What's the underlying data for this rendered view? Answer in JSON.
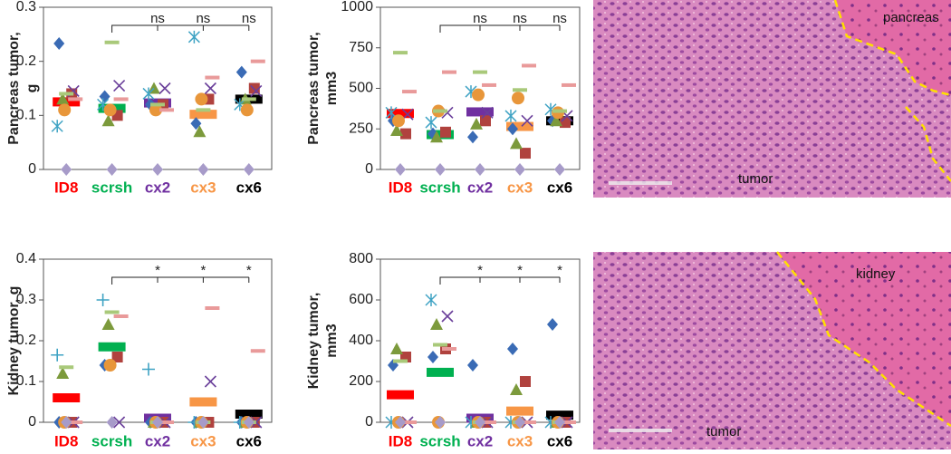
{
  "chart_data": [
    {
      "type": "dotplot",
      "ylabel": [
        "Pancreas tumor,",
        "g"
      ],
      "categories": [
        "ID8",
        "scrsh",
        "cx2",
        "cx3",
        "cx6"
      ],
      "colors": [
        "#ff0000",
        "#00b050",
        "#7030a0",
        "#f79646",
        "#000000"
      ],
      "values": [
        0.125,
        0.113,
        0.123,
        0.102,
        0.13
      ],
      "ylim": [
        0,
        0.3
      ],
      "yticks": [
        0,
        0.1,
        0.2,
        0.3
      ],
      "significance": [
        null,
        null,
        "ns",
        "ns",
        "ns"
      ],
      "series": [
        {
          "marker": "diamond",
          "color": "#3a6bb5",
          "values": [
            0.233,
            0.135,
            0.12,
            0.085,
            0.18
          ]
        },
        {
          "marker": "square",
          "color": "#b0423e",
          "values": [
            0.14,
            0.1,
            0.12,
            0.13,
            0.15
          ]
        },
        {
          "marker": "triangle",
          "color": "#7c9a3c",
          "values": [
            0.13,
            0.09,
            0.15,
            0.07,
            0.13
          ]
        },
        {
          "marker": "x",
          "color": "#6a3f9a",
          "values": [
            0.145,
            0.155,
            0.15,
            0.15,
            0.145
          ]
        },
        {
          "marker": "asterisk",
          "color": "#3fa3c4",
          "values": [
            0.08,
            0.12,
            0.14,
            0.245,
            0.12
          ]
        },
        {
          "marker": "circle",
          "color": "#e8963a",
          "values": [
            0.11,
            0.11,
            0.11,
            0.13,
            0.11
          ]
        },
        {
          "marker": "dash",
          "color": "#a9c97a",
          "values": [
            0.14,
            0.235,
            0.12,
            0.11,
            0.13
          ]
        },
        {
          "marker": "dash",
          "color": "#e99a9a",
          "values": [
            0.13,
            0.13,
            0.11,
            0.17,
            0.2
          ]
        },
        {
          "marker": "diamond",
          "color": "#a79bc9",
          "values": [
            0,
            0,
            0,
            0,
            0
          ]
        }
      ]
    },
    {
      "type": "dotplot",
      "ylabel": [
        "Pancreas tumor,",
        "mm3"
      ],
      "categories": [
        "ID8",
        "scrsh",
        "cx2",
        "cx3",
        "cx6"
      ],
      "colors": [
        "#ff0000",
        "#00b050",
        "#7030a0",
        "#f79646",
        "#000000"
      ],
      "values": [
        345,
        215,
        355,
        265,
        300
      ],
      "ylim": [
        0,
        1000
      ],
      "yticks": [
        0,
        250,
        500,
        750,
        1000
      ],
      "significance": [
        null,
        null,
        "ns",
        "ns",
        "ns"
      ],
      "series": [
        {
          "marker": "diamond",
          "color": "#3a6bb5",
          "values": [
            300,
            220,
            200,
            250,
            300
          ]
        },
        {
          "marker": "square",
          "color": "#b0423e",
          "values": [
            220,
            230,
            300,
            100,
            290
          ]
        },
        {
          "marker": "triangle",
          "color": "#7c9a3c",
          "values": [
            240,
            200,
            280,
            160,
            300
          ]
        },
        {
          "marker": "x",
          "color": "#6a3f9a",
          "values": [
            340,
            350,
            350,
            300,
            330
          ]
        },
        {
          "marker": "asterisk",
          "color": "#3fa3c4",
          "values": [
            350,
            290,
            480,
            330,
            370
          ]
        },
        {
          "marker": "circle",
          "color": "#e8963a",
          "values": [
            300,
            360,
            460,
            440,
            350
          ]
        },
        {
          "marker": "dash",
          "color": "#a9c97a",
          "values": [
            720,
            360,
            600,
            490,
            360
          ]
        },
        {
          "marker": "dash",
          "color": "#e99a9a",
          "values": [
            480,
            600,
            520,
            640,
            520
          ]
        },
        {
          "marker": "diamond",
          "color": "#a79bc9",
          "values": [
            0,
            0,
            0,
            0,
            0
          ]
        }
      ]
    },
    {
      "type": "dotplot",
      "ylabel": [
        "Kidney tumor, g"
      ],
      "categories": [
        "ID8",
        "scrsh",
        "cx2",
        "cx3",
        "cx6"
      ],
      "colors": [
        "#ff0000",
        "#00b050",
        "#7030a0",
        "#f79646",
        "#000000"
      ],
      "values": [
        0.06,
        0.185,
        0.01,
        0.05,
        0.02
      ],
      "ylim": [
        0,
        0.4
      ],
      "yticks": [
        0,
        0.1,
        0.2,
        0.3,
        0.4
      ],
      "significance": [
        null,
        null,
        "*",
        "*",
        "*"
      ],
      "series": [
        {
          "marker": "diamond",
          "color": "#3a6bb5",
          "values": [
            0,
            0.14,
            0,
            0,
            0
          ]
        },
        {
          "marker": "square",
          "color": "#b0423e",
          "values": [
            0,
            0.16,
            0,
            0,
            0
          ]
        },
        {
          "marker": "triangle",
          "color": "#7c9a3c",
          "values": [
            0.12,
            0.24,
            0,
            0,
            0
          ]
        },
        {
          "marker": "x",
          "color": "#6a3f9a",
          "values": [
            0,
            0,
            0,
            0.1,
            0
          ]
        },
        {
          "marker": "plus",
          "color": "#3fa3c4",
          "values": [
            0.165,
            0.3,
            0.13,
            0,
            0
          ]
        },
        {
          "marker": "circle",
          "color": "#e8963a",
          "values": [
            0,
            0.14,
            0,
            0,
            0
          ]
        },
        {
          "marker": "dash",
          "color": "#a9c97a",
          "values": [
            0.135,
            0.27,
            0,
            0,
            0
          ]
        },
        {
          "marker": "dash",
          "color": "#e99a9a",
          "values": [
            0,
            0.26,
            0,
            0.28,
            0.175
          ]
        },
        {
          "marker": "diamond",
          "color": "#a79bc9",
          "values": [
            0,
            0,
            0,
            0,
            0
          ]
        }
      ]
    },
    {
      "type": "dotplot",
      "ylabel": [
        "Kidney tumor,",
        "mm3"
      ],
      "categories": [
        "ID8",
        "scrsh",
        "cx2",
        "cx3",
        "cx6"
      ],
      "colors": [
        "#ff0000",
        "#00b050",
        "#7030a0",
        "#f79646",
        "#000000"
      ],
      "values": [
        135,
        245,
        20,
        55,
        35
      ],
      "ylim": [
        0,
        800
      ],
      "yticks": [
        0,
        200,
        400,
        600,
        800
      ],
      "significance": [
        null,
        null,
        "*",
        "*",
        "*"
      ],
      "series": [
        {
          "marker": "diamond",
          "color": "#3a6bb5",
          "values": [
            280,
            320,
            280,
            360,
            480
          ]
        },
        {
          "marker": "square",
          "color": "#b0423e",
          "values": [
            320,
            360,
            0,
            200,
            0
          ]
        },
        {
          "marker": "triangle",
          "color": "#7c9a3c",
          "values": [
            360,
            480,
            0,
            160,
            0
          ]
        },
        {
          "marker": "x",
          "color": "#6a3f9a",
          "values": [
            0,
            520,
            0,
            0,
            0
          ]
        },
        {
          "marker": "asterisk",
          "color": "#3fa3c4",
          "values": [
            0,
            600,
            0,
            0,
            0
          ]
        },
        {
          "marker": "circle",
          "color": "#e8963a",
          "values": [
            0,
            0,
            0,
            0,
            0
          ]
        },
        {
          "marker": "dash",
          "color": "#a9c97a",
          "values": [
            300,
            380,
            0,
            0,
            0
          ]
        },
        {
          "marker": "dash",
          "color": "#e99a9a",
          "values": [
            0,
            360,
            0,
            0,
            0
          ]
        },
        {
          "marker": "diamond",
          "color": "#a79bc9",
          "values": [
            0,
            0,
            0,
            0,
            0
          ]
        }
      ]
    }
  ],
  "images": [
    {
      "labels": [
        "pancreas",
        "tumor"
      ]
    },
    {
      "labels": [
        "kidney",
        "tumor"
      ]
    }
  ]
}
